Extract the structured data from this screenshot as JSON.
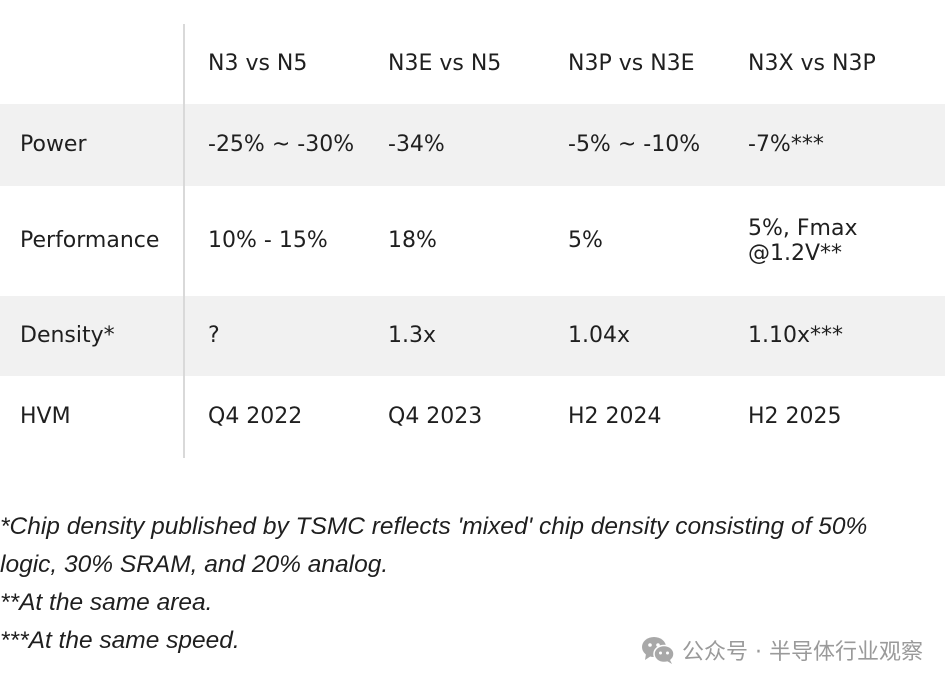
{
  "table": {
    "columns": [
      "N3 vs N5",
      "N3E vs N5",
      "N3P vs N3E",
      "N3X vs N3P"
    ],
    "rows": [
      {
        "label": "Power",
        "values": [
          "-25% ~ -30%",
          "-34%",
          "-5% ~ -10%",
          "-7%***"
        ]
      },
      {
        "label": "Performance",
        "values": [
          "10% - 15%",
          "18%",
          "5%",
          "5%, Fmax @1.2V**"
        ]
      },
      {
        "label": "Density*",
        "values": [
          "?",
          "1.3x",
          "1.04x",
          "1.10x***"
        ]
      },
      {
        "label": "HVM",
        "values": [
          "Q4 2022",
          "Q4 2023",
          "H2 2024",
          "H2 2025"
        ]
      }
    ]
  },
  "notes": {
    "line1": "*Chip density published by TSMC reflects 'mixed' chip density consisting of 50%",
    "line2": "logic, 30% SRAM, and 20% analog.",
    "line3": "**At the same area.",
    "line4": "***At the same speed."
  },
  "watermark": {
    "icon": "wechat-icon",
    "text": "公众号 · 半导体行业观察"
  }
}
